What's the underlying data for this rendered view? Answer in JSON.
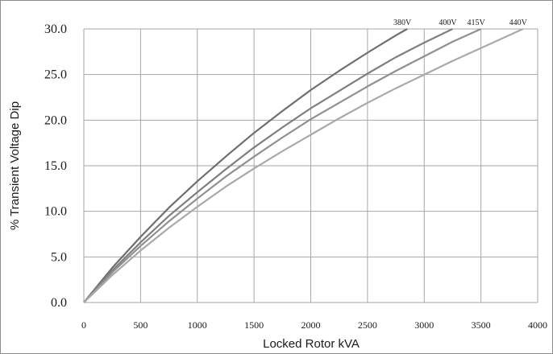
{
  "chart_data": {
    "type": "line",
    "title": "",
    "xlabel": "Locked Rotor kVA",
    "ylabel": "% Transient Voltage Dip",
    "xlim": [
      0,
      4000
    ],
    "ylim": [
      0,
      30
    ],
    "x_ticks": [
      "0",
      "500",
      "1000",
      "1500",
      "2000",
      "2500",
      "3000",
      "3500",
      "4000"
    ],
    "y_ticks": [
      "0.0",
      "5.0",
      "10.0",
      "15.0",
      "20.0",
      "25.0",
      "30.0"
    ],
    "grid": true,
    "legend": "labels at line ends, top",
    "series": [
      {
        "name": "380V",
        "color": "#6e6e6e",
        "x": [
          0,
          250,
          500,
          750,
          1000,
          1250,
          1500,
          1750,
          2000,
          2250,
          2500,
          2750,
          2850
        ],
        "y": [
          0,
          3.8,
          7.2,
          10.4,
          13.3,
          16.0,
          18.6,
          21.0,
          23.3,
          25.4,
          27.4,
          29.3,
          30.0
        ]
      },
      {
        "name": "400V",
        "color": "#7f7f7f",
        "x": [
          0,
          250,
          500,
          750,
          1000,
          1250,
          1500,
          1750,
          2000,
          2250,
          2500,
          2750,
          3000,
          3250
        ],
        "y": [
          0,
          3.5,
          6.6,
          9.5,
          12.1,
          14.6,
          17.0,
          19.2,
          21.3,
          23.2,
          25.1,
          26.9,
          28.5,
          30.0
        ]
      },
      {
        "name": "415V",
        "color": "#909090",
        "x": [
          0,
          250,
          500,
          750,
          1000,
          1250,
          1500,
          1750,
          2000,
          2250,
          2500,
          2750,
          3000,
          3250,
          3500
        ],
        "y": [
          0,
          3.3,
          6.2,
          8.9,
          11.4,
          13.8,
          16.0,
          18.1,
          20.1,
          21.9,
          23.7,
          25.4,
          27.0,
          28.6,
          30.0
        ]
      },
      {
        "name": "440V",
        "color": "#a9a9a9",
        "x": [
          0,
          250,
          500,
          750,
          1000,
          1250,
          1500,
          1750,
          2000,
          2250,
          2500,
          2750,
          3000,
          3250,
          3500,
          3870
        ],
        "y": [
          0,
          3.0,
          5.7,
          8.2,
          10.5,
          12.7,
          14.7,
          16.6,
          18.4,
          20.2,
          21.9,
          23.5,
          25.0,
          26.5,
          27.9,
          30.0
        ]
      }
    ]
  }
}
